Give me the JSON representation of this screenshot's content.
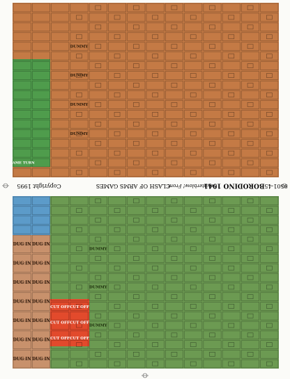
{
  "sheet": {
    "title": "BORODINO 1941",
    "subtitle": "Counterblow! Front",
    "publisher": "CLASH OF ARMS GAMES",
    "copyright": "Copyright 1995",
    "code": "9501-45"
  },
  "counters": {
    "dug_in": [
      "DUG IN",
      "DUG IN",
      "DUG IN",
      "DUG IN",
      "DUG IN",
      "DUG IN",
      "DUG IN",
      "DUG IN",
      "DUG IN",
      "DUG IN",
      "DUG IN",
      "DUG IN",
      "DUG IN",
      "DUG IN"
    ],
    "cut_off": [
      "CUT OFF",
      "CUT OFF",
      "CUT OFF",
      "CUT OFF",
      "CUT OFF",
      "CUT OFF"
    ],
    "dummy_top": [
      "DUMMY",
      "DUMMY",
      "DUMMY",
      "DUMMY"
    ],
    "dummy_bottom": [
      "DUMMY",
      "DUMMY",
      "DUMMY"
    ],
    "game_turn": "GAME TURN"
  }
}
